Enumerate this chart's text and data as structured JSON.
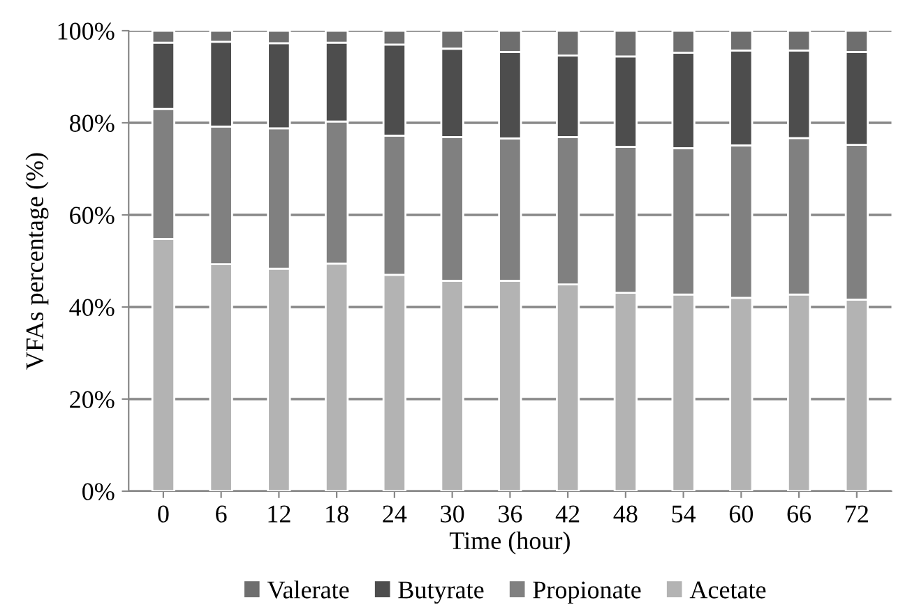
{
  "chart_data": {
    "type": "bar",
    "stacked": true,
    "xlabel": "Time (hour)",
    "ylabel": "VFAs percentage (%)",
    "categories": [
      "0",
      "6",
      "12",
      "18",
      "24",
      "30",
      "36",
      "42",
      "48",
      "54",
      "60",
      "66",
      "72"
    ],
    "series": [
      {
        "name": "Acetate",
        "color": "#b3b3b3",
        "values": [
          54.8,
          49.3,
          48.3,
          49.4,
          47.0,
          45.7,
          45.7,
          44.9,
          43.1,
          42.7,
          42.0,
          42.7,
          41.6
        ]
      },
      {
        "name": "Propionate",
        "color": "#808080",
        "values": [
          28.2,
          29.9,
          30.5,
          30.9,
          30.2,
          31.2,
          30.9,
          32.0,
          31.7,
          31.8,
          33.1,
          34.0,
          33.6
        ]
      },
      {
        "name": "Butyrate",
        "color": "#4d4d4d",
        "values": [
          14.4,
          18.4,
          18.5,
          17.1,
          19.8,
          19.2,
          18.8,
          17.7,
          19.6,
          20.7,
          20.6,
          19.0,
          20.2
        ]
      },
      {
        "name": "Valerate",
        "color": "#6e6e6e",
        "values": [
          2.6,
          2.4,
          2.7,
          2.6,
          3.0,
          3.9,
          4.6,
          5.4,
          5.6,
          4.8,
          4.3,
          4.3,
          4.6
        ]
      }
    ],
    "ylim": [
      0,
      100
    ],
    "yticks": [
      {
        "value": 0,
        "label": "0%"
      },
      {
        "value": 20,
        "label": "20%"
      },
      {
        "value": 40,
        "label": "40%"
      },
      {
        "value": 60,
        "label": "60%"
      },
      {
        "value": 80,
        "label": "80%"
      },
      {
        "value": 100,
        "label": "100%"
      }
    ],
    "grid": "y",
    "legend": "bottom"
  }
}
